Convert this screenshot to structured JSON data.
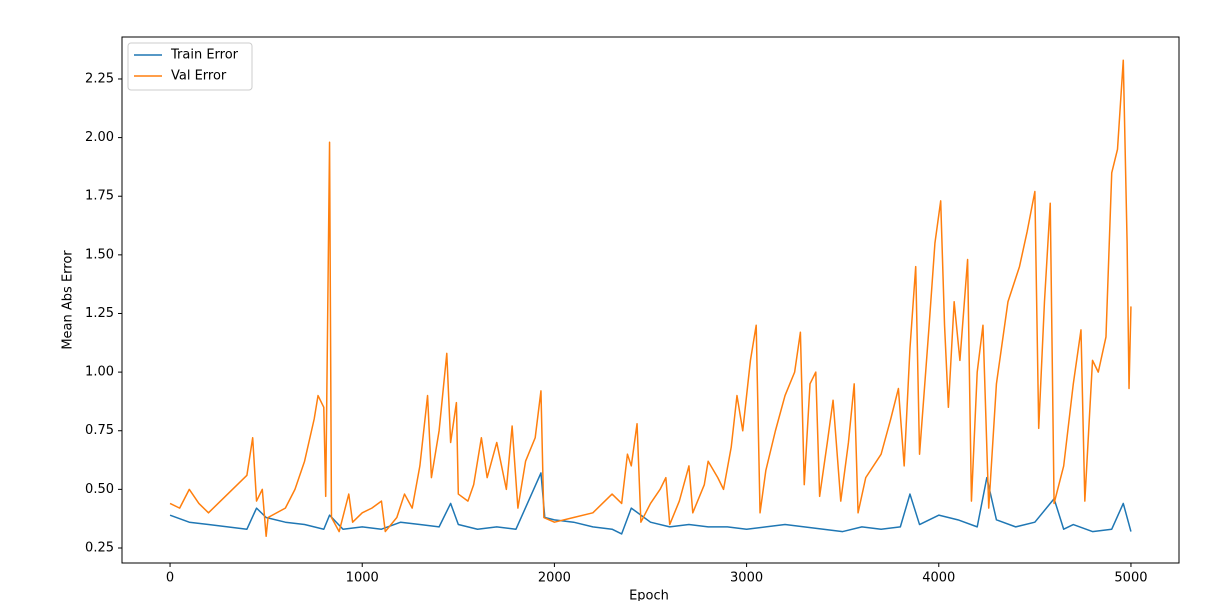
{
  "chart_data": {
    "type": "line",
    "xlabel": "Epoch",
    "ylabel": "Mean Abs Error",
    "xlim": [
      -250,
      5250
    ],
    "ylim": [
      0.186,
      2.429
    ],
    "xticks": [
      0,
      1000,
      2000,
      3000,
      4000,
      5000
    ],
    "yticks": [
      0.25,
      {
        "value": 0.5,
        "label": "0.50"
      },
      0.75,
      {
        "value": 1.0,
        "label": "1.00"
      },
      1.25,
      {
        "value": 1.5,
        "label": "1.50"
      },
      1.75,
      {
        "value": 2.0,
        "label": "2.00"
      },
      2.25
    ],
    "grid": false,
    "legend": "upper left",
    "series": [
      {
        "name": "Train Error",
        "color": "#1f77b4",
        "x": [
          0,
          100,
          200,
          300,
          400,
          450,
          500,
          600,
          700,
          800,
          830,
          900,
          1000,
          1100,
          1200,
          1300,
          1400,
          1460,
          1500,
          1600,
          1700,
          1800,
          1930,
          1950,
          2000,
          2100,
          2200,
          2300,
          2350,
          2400,
          2500,
          2600,
          2700,
          2800,
          2900,
          3000,
          3100,
          3200,
          3300,
          3400,
          3500,
          3600,
          3700,
          3800,
          3850,
          3900,
          4000,
          4100,
          4200,
          4250,
          4300,
          4400,
          4500,
          4600,
          4650,
          4700,
          4800,
          4900,
          4960,
          5000
        ],
        "values": [
          0.39,
          0.36,
          0.35,
          0.34,
          0.33,
          0.42,
          0.38,
          0.36,
          0.35,
          0.33,
          0.39,
          0.33,
          0.34,
          0.33,
          0.36,
          0.35,
          0.34,
          0.44,
          0.35,
          0.33,
          0.34,
          0.33,
          0.57,
          0.38,
          0.37,
          0.36,
          0.34,
          0.33,
          0.31,
          0.42,
          0.36,
          0.34,
          0.35,
          0.34,
          0.34,
          0.33,
          0.34,
          0.35,
          0.34,
          0.33,
          0.32,
          0.34,
          0.33,
          0.34,
          0.48,
          0.35,
          0.39,
          0.37,
          0.34,
          0.55,
          0.37,
          0.34,
          0.36,
          0.46,
          0.33,
          0.35,
          0.32,
          0.33,
          0.44,
          0.32
        ]
      },
      {
        "name": "Val Error",
        "color": "#ff7f0e",
        "x": [
          0,
          50,
          100,
          150,
          200,
          250,
          300,
          350,
          400,
          430,
          450,
          480,
          500,
          510,
          600,
          650,
          700,
          750,
          770,
          800,
          810,
          830,
          840,
          880,
          930,
          950,
          1000,
          1050,
          1100,
          1120,
          1180,
          1220,
          1260,
          1300,
          1340,
          1360,
          1400,
          1440,
          1460,
          1490,
          1500,
          1550,
          1580,
          1620,
          1650,
          1700,
          1750,
          1780,
          1810,
          1850,
          1900,
          1930,
          1945,
          2000,
          2100,
          2200,
          2250,
          2300,
          2350,
          2380,
          2400,
          2430,
          2450,
          2500,
          2550,
          2580,
          2600,
          2650,
          2700,
          2720,
          2780,
          2800,
          2850,
          2880,
          2920,
          2950,
          2980,
          3020,
          3050,
          3070,
          3100,
          3150,
          3200,
          3250,
          3280,
          3300,
          3330,
          3360,
          3380,
          3420,
          3450,
          3490,
          3530,
          3560,
          3580,
          3620,
          3700,
          3750,
          3790,
          3820,
          3850,
          3880,
          3900,
          3950,
          3980,
          4010,
          4030,
          4050,
          4080,
          4110,
          4150,
          4170,
          4200,
          4230,
          4260,
          4300,
          4360,
          4420,
          4460,
          4500,
          4520,
          4550,
          4580,
          4600,
          4650,
          4700,
          4740,
          4760,
          4800,
          4830,
          4870,
          4900,
          4930,
          4960,
          4980,
          4990,
          5000
        ],
        "values": [
          0.44,
          0.42,
          0.5,
          0.44,
          0.4,
          0.44,
          0.48,
          0.52,
          0.56,
          0.72,
          0.45,
          0.5,
          0.3,
          0.38,
          0.42,
          0.5,
          0.62,
          0.8,
          0.9,
          0.85,
          0.47,
          1.98,
          0.38,
          0.32,
          0.48,
          0.36,
          0.4,
          0.42,
          0.45,
          0.32,
          0.38,
          0.48,
          0.42,
          0.6,
          0.9,
          0.55,
          0.75,
          1.08,
          0.7,
          0.87,
          0.48,
          0.45,
          0.52,
          0.72,
          0.55,
          0.7,
          0.5,
          0.77,
          0.42,
          0.62,
          0.72,
          0.92,
          0.38,
          0.36,
          0.38,
          0.4,
          0.44,
          0.48,
          0.44,
          0.65,
          0.6,
          0.78,
          0.36,
          0.44,
          0.5,
          0.55,
          0.35,
          0.45,
          0.6,
          0.4,
          0.52,
          0.62,
          0.55,
          0.5,
          0.68,
          0.9,
          0.75,
          1.05,
          1.2,
          0.4,
          0.58,
          0.75,
          0.9,
          1.0,
          1.17,
          0.52,
          0.95,
          1.0,
          0.47,
          0.7,
          0.88,
          0.45,
          0.7,
          0.95,
          0.4,
          0.55,
          0.65,
          0.8,
          0.93,
          0.6,
          1.1,
          1.45,
          0.65,
          1.2,
          1.55,
          1.73,
          1.2,
          0.85,
          1.3,
          1.05,
          1.48,
          0.45,
          1.0,
          1.2,
          0.42,
          0.95,
          1.3,
          1.45,
          1.6,
          1.77,
          0.76,
          1.3,
          1.72,
          0.44,
          0.6,
          0.95,
          1.18,
          0.45,
          1.05,
          1.0,
          1.15,
          1.85,
          1.95,
          2.33,
          1.55,
          0.93,
          1.28
        ]
      }
    ]
  }
}
